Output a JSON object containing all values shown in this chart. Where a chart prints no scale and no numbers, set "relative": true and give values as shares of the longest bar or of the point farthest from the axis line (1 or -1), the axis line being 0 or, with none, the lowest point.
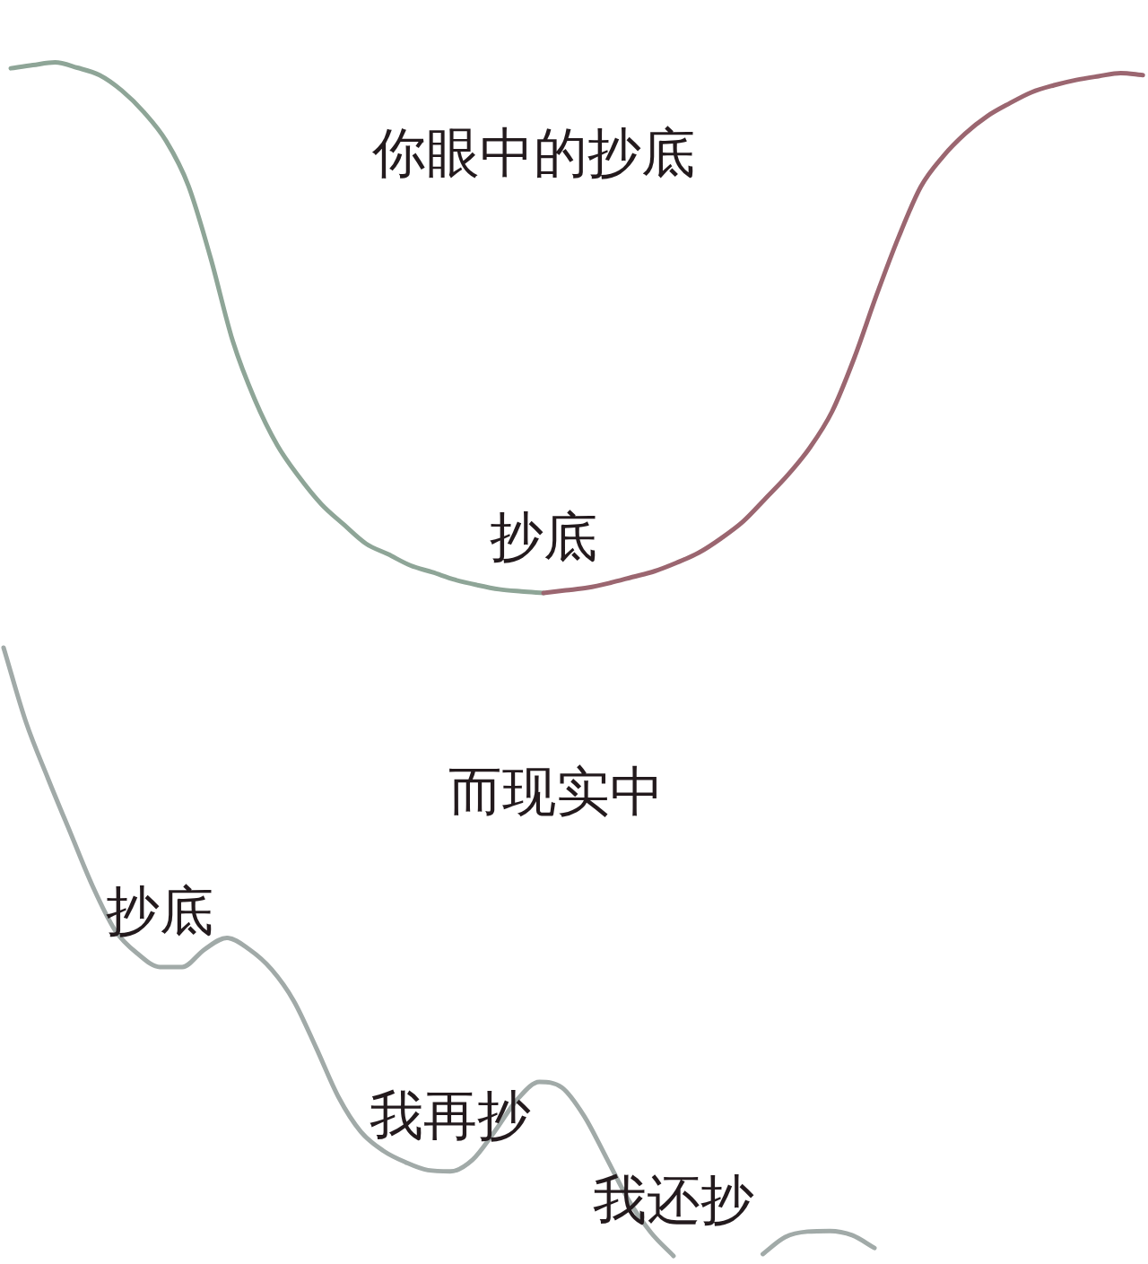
{
  "chart_data": [
    {
      "type": "line",
      "title": "你眼中的抄底",
      "relative": true,
      "categories": [
        null,
        null,
        null,
        null,
        null,
        null,
        null,
        null,
        null,
        null,
        null,
        null,
        null,
        null,
        null,
        null,
        null,
        null,
        null,
        null,
        null,
        null,
        null,
        null,
        null,
        null,
        null,
        null,
        null,
        null,
        null,
        null,
        null,
        null,
        null,
        null,
        null,
        null,
        null,
        null,
        null,
        null,
        null,
        null,
        null,
        null,
        null,
        null,
        null,
        null,
        null,
        null
      ],
      "series": [
        {
          "color": "#8ea597",
          "values": [
            0.989,
            0.995,
            1.0,
            0.99,
            0.976,
            0.947,
            0.906,
            0.852,
            0.768,
            0.632,
            0.475,
            0.364,
            0.279,
            0.218,
            0.167,
            0.129,
            0.093,
            0.073,
            0.052,
            0.039,
            0.025,
            0.015,
            0.007,
            0.003,
            0,
            null,
            null,
            null,
            null,
            null,
            null,
            null,
            null,
            null,
            null,
            null,
            null,
            null,
            null,
            null,
            null,
            null,
            null,
            null,
            null,
            null,
            null,
            null,
            null,
            null,
            null,
            null
          ]
        },
        {
          "color": "#9b6670",
          "values": [
            null,
            null,
            null,
            null,
            null,
            null,
            null,
            null,
            null,
            null,
            null,
            null,
            null,
            null,
            null,
            null,
            null,
            null,
            null,
            null,
            null,
            null,
            null,
            null,
            0,
            0.005,
            0.01,
            0.019,
            0.03,
            0.041,
            0.057,
            0.076,
            0.103,
            0.135,
            0.178,
            0.222,
            0.274,
            0.342,
            0.443,
            0.561,
            0.671,
            0.766,
            0.823,
            0.866,
            0.899,
            0.923,
            0.944,
            0.957,
            0.967,
            0.974,
            0.98,
            0.976
          ]
        }
      ],
      "annotations": [
        "抄底"
      ]
    },
    {
      "type": "line",
      "title": "而现实中",
      "relative": true,
      "categories": [
        null,
        null,
        null,
        null,
        null,
        null,
        null,
        null,
        null,
        null,
        null,
        null,
        null,
        null,
        null,
        null,
        null,
        null,
        null,
        null,
        null,
        null,
        null,
        null,
        null,
        null,
        null,
        null,
        null,
        null,
        null,
        null,
        null,
        null,
        null,
        null,
        null,
        null,
        null,
        null
      ],
      "series": [
        {
          "color": "#a1aaa8",
          "values": [
            1.0,
            0.878,
            0.784,
            0.695,
            0.607,
            0.535,
            0.497,
            0.475,
            0.475,
            0.504,
            0.523,
            0.504,
            0.471,
            0.419,
            0.342,
            0.261,
            0.204,
            0.173,
            0.154,
            0.141,
            0.139,
            0.158,
            0.205,
            0.257,
            0.286,
            0.277,
            0.23,
            0.161,
            0.091,
            0.038,
            0,
            null,
            null,
            null,
            null,
            null,
            null,
            null,
            null,
            null
          ]
        },
        {
          "color": "#a1aaa8",
          "values": [
            null,
            null,
            null,
            null,
            null,
            null,
            null,
            null,
            null,
            null,
            null,
            null,
            null,
            null,
            null,
            null,
            null,
            null,
            null,
            null,
            null,
            null,
            null,
            null,
            null,
            null,
            null,
            null,
            null,
            null,
            null,
            null,
            null,
            null,
            0.003,
            0.031,
            0.04,
            0.041,
            0.034,
            0.013
          ]
        }
      ],
      "annotations": [
        "抄底",
        "我再抄",
        "我还抄"
      ]
    }
  ]
}
